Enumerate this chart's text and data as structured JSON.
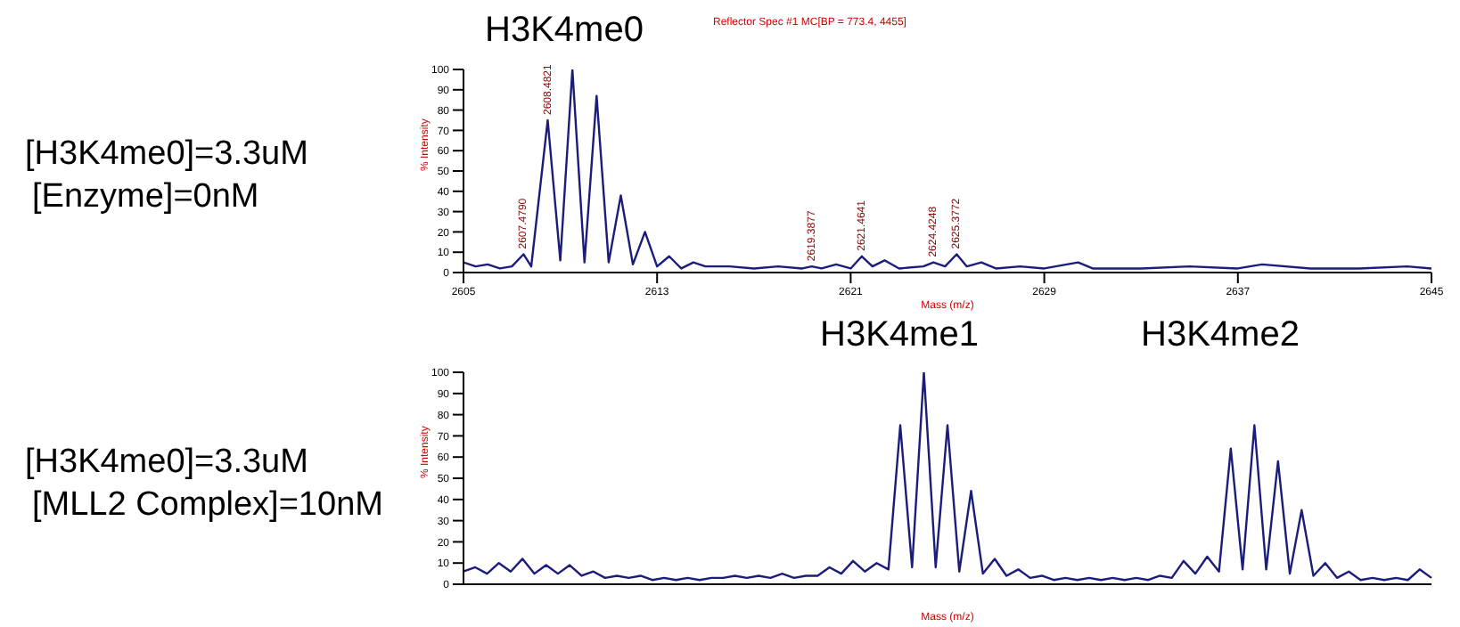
{
  "chart_data": [
    {
      "type": "line",
      "title": "H3K4me0",
      "subtitle": "Reflector Spec #1 MC[BP = 773.4, 4455]",
      "xlabel": "Mass (m/z)",
      "ylabel": "% Intensity",
      "annotations": [
        "[H3K4me0]=3.3uM",
        "[Enzyme]=0nM",
        {
          "text": "2607.4790",
          "x": 2607.48,
          "y": 9
        },
        {
          "text": "2608.4821",
          "x": 2608.48,
          "y": 75
        },
        {
          "text": "2619.3877",
          "x": 2619.39,
          "y": 3
        },
        {
          "text": "2621.4641",
          "x": 2621.46,
          "y": 8
        },
        {
          "text": "2624.4248",
          "x": 2624.42,
          "y": 5
        },
        {
          "text": "2625.3772",
          "x": 2625.38,
          "y": 9
        }
      ],
      "x": [
        2605,
        2605.5,
        2606,
        2606.5,
        2607,
        2607.48,
        2607.8,
        2608.48,
        2609,
        2609.5,
        2610,
        2610.5,
        2611,
        2611.5,
        2612,
        2612.5,
        2613,
        2613.5,
        2614,
        2614.5,
        2615,
        2616,
        2617,
        2618,
        2619,
        2619.39,
        2619.8,
        2620.4,
        2621,
        2621.46,
        2621.9,
        2622.4,
        2623,
        2624,
        2624.42,
        2624.9,
        2625.38,
        2625.8,
        2626.4,
        2627,
        2628,
        2629,
        2630.4,
        2631,
        2633,
        2635,
        2637,
        2638,
        2640,
        2642,
        2644,
        2645
      ],
      "series": [
        {
          "color": "#1c1c7a",
          "values": [
            5,
            3,
            4,
            2,
            3,
            9,
            3,
            75,
            6,
            100,
            5,
            87,
            5,
            38,
            4,
            20,
            3,
            8,
            2,
            5,
            3,
            3,
            2,
            3,
            2,
            3,
            2,
            4,
            2,
            8,
            3,
            6,
            2,
            3,
            5,
            3,
            9,
            3,
            5,
            2,
            3,
            2,
            5,
            2,
            2,
            3,
            2,
            4,
            2,
            2,
            3,
            2
          ]
        }
      ],
      "xlim": [
        2605,
        2645
      ],
      "xticks": [
        2605,
        2613,
        2621,
        2629,
        2637,
        2645
      ],
      "ylim": [
        0,
        100
      ],
      "yticks": [
        0,
        10,
        20,
        30,
        40,
        50,
        60,
        70,
        80,
        90,
        100
      ],
      "grid": false,
      "legend": false,
      "marker": "none",
      "line_style": "solid"
    },
    {
      "type": "line",
      "xlabel": "Mass (m/z)",
      "ylabel": "% Intensity",
      "annotations": [
        "H3K4me1",
        "H3K4me2",
        "[H3K4me0]=3.3uM",
        "[MLL2 Complex]=10nM"
      ],
      "categories": [
        null,
        null,
        null,
        null,
        null,
        null,
        null,
        null,
        null,
        null,
        null,
        null,
        null,
        null,
        null,
        null,
        null,
        null,
        null,
        null,
        null,
        null,
        null,
        null,
        null,
        null,
        null,
        null,
        null,
        null,
        null,
        null,
        null,
        null,
        null,
        null,
        null,
        null,
        null,
        null,
        null,
        null,
        null,
        null,
        null,
        null,
        null,
        null,
        null,
        null,
        null,
        null,
        null,
        null,
        null,
        null,
        null,
        null,
        null,
        null,
        null,
        null,
        null,
        null,
        null,
        null,
        null,
        null,
        null,
        null,
        null,
        null,
        null,
        null,
        null,
        null,
        null,
        null,
        null,
        null,
        null,
        null,
        null
      ],
      "series": [
        {
          "color": "#1c1c7a",
          "values": [
            6,
            8,
            5,
            10,
            6,
            12,
            5,
            9,
            5,
            9,
            4,
            6,
            3,
            4,
            3,
            4,
            2,
            3,
            2,
            3,
            2,
            3,
            3,
            4,
            3,
            4,
            3,
            5,
            3,
            4,
            4,
            8,
            5,
            11,
            6,
            10,
            7,
            75,
            8,
            100,
            8,
            75,
            6,
            44,
            5,
            12,
            4,
            7,
            3,
            4,
            2,
            3,
            2,
            3,
            2,
            3,
            2,
            3,
            2,
            4,
            3,
            11,
            5,
            13,
            6,
            64,
            7,
            75,
            7,
            58,
            5,
            35,
            4,
            10,
            3,
            6,
            2,
            3,
            2,
            3,
            2,
            7,
            3
          ]
        }
      ],
      "ylim": [
        0,
        100
      ],
      "yticks": [
        0,
        10,
        20,
        30,
        40,
        50,
        60,
        70,
        80,
        90,
        100
      ],
      "tick_labels": "y",
      "grid": false,
      "legend": false,
      "marker": "none",
      "line_style": "solid"
    }
  ]
}
